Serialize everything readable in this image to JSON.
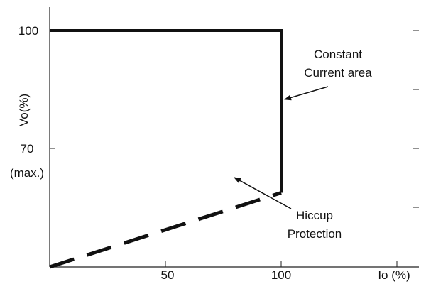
{
  "chart_data": {
    "type": "line",
    "xlabel": "Io (%)",
    "ylabel": "Vo(%)",
    "xlim": [
      0,
      150
    ],
    "ylim": [
      57,
      100
    ],
    "x_ticks": [
      {
        "value": 50,
        "label": "50"
      },
      {
        "value": 100,
        "label": "100"
      }
    ],
    "y_ticks": [
      {
        "value": 100,
        "label": "100"
      },
      {
        "value": 70,
        "label": "70"
      }
    ],
    "y_tick_sublabel": "(max.)",
    "grid": false,
    "series": [
      {
        "style": "solid",
        "points": [
          [
            0,
            100
          ],
          [
            100,
            100
          ],
          [
            100,
            70.5
          ]
        ]
      },
      {
        "style": "dashed",
        "points": [
          [
            0,
            57
          ],
          [
            100,
            70.5
          ]
        ]
      }
    ],
    "annotations": [
      {
        "lines": [
          "Constant",
          "Current area"
        ],
        "target": [
          100,
          90
        ]
      },
      {
        "lines": [
          "Hiccup",
          "Protection"
        ],
        "target": [
          80,
          66.5
        ]
      }
    ]
  }
}
